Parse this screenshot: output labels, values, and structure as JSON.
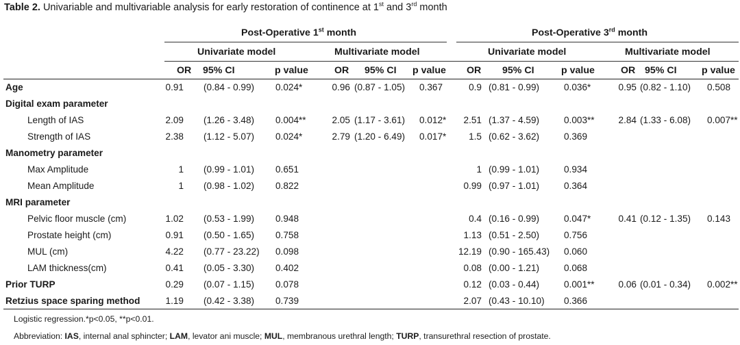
{
  "caption": {
    "label": "Table 2.",
    "text": "Univariable and multivariable analysis for early restoration of continence at 1",
    "sup1": "st",
    "mid": " and 3",
    "sup2": "rd",
    "end": " month"
  },
  "headers": {
    "period1": {
      "text": "Post-Operative 1",
      "sup": "st",
      "end": " month"
    },
    "period3": {
      "text": "Post-Operative 3",
      "sup": "rd",
      "end": " month"
    },
    "univariate": "Univariate model",
    "multivariate": "Multivariate model",
    "cols": {
      "or": "OR",
      "ci": "95% CI",
      "p": "p value"
    }
  },
  "rows": [
    {
      "label": "Age",
      "bold": true,
      "indent": false,
      "m1u": [
        "0.91",
        "(0.84 - 0.99)",
        "0.024*"
      ],
      "m1m": [
        "0.96",
        "(0.87 - 1.05)",
        "0.367"
      ],
      "m3u": [
        "0.9",
        "(0.81 - 0.99)",
        "0.036*"
      ],
      "m3m": [
        "0.95",
        "(0.82 - 1.10)",
        "0.508"
      ]
    },
    {
      "label": "Digital exam parameter",
      "bold": true,
      "indent": false,
      "m1u": [
        "",
        "",
        ""
      ],
      "m1m": [
        "",
        "",
        ""
      ],
      "m3u": [
        "",
        "",
        ""
      ],
      "m3m": [
        "",
        "",
        ""
      ]
    },
    {
      "label": "Length of IAS",
      "bold": false,
      "indent": true,
      "m1u": [
        "2.09",
        "(1.26 - 3.48)",
        "0.004**"
      ],
      "m1m": [
        "2.05",
        "(1.17 - 3.61)",
        "0.012*"
      ],
      "m3u": [
        "2.51",
        "(1.37 - 4.59)",
        "0.003**"
      ],
      "m3m": [
        "2.84",
        "(1.33 - 6.08)",
        "0.007**"
      ]
    },
    {
      "label": "Strength of IAS",
      "bold": false,
      "indent": true,
      "m1u": [
        "2.38",
        "(1.12 - 5.07)",
        "0.024*"
      ],
      "m1m": [
        "2.79",
        "(1.20 - 6.49)",
        "0.017*"
      ],
      "m3u": [
        "1.5",
        "(0.62 - 3.62)",
        "0.369"
      ],
      "m3m": [
        "",
        "",
        ""
      ]
    },
    {
      "label": "Manometry parameter",
      "bold": true,
      "indent": false,
      "m1u": [
        "",
        "",
        ""
      ],
      "m1m": [
        "",
        "",
        ""
      ],
      "m3u": [
        "",
        "",
        ""
      ],
      "m3m": [
        "",
        "",
        ""
      ]
    },
    {
      "label": "Max Amplitude",
      "bold": false,
      "indent": true,
      "m1u": [
        "1",
        "(0.99 - 1.01)",
        "0.651"
      ],
      "m1m": [
        "",
        "",
        ""
      ],
      "m3u": [
        "1",
        "(0.99 - 1.01)",
        "0.934"
      ],
      "m3m": [
        "",
        "",
        ""
      ]
    },
    {
      "label": "Mean Amplitude",
      "bold": false,
      "indent": true,
      "m1u": [
        "1",
        "(0.98 - 1.02)",
        "0.822"
      ],
      "m1m": [
        "",
        "",
        ""
      ],
      "m3u": [
        "0.99",
        "(0.97 - 1.01)",
        "0.364"
      ],
      "m3m": [
        "",
        "",
        ""
      ]
    },
    {
      "label": "MRI parameter",
      "bold": true,
      "indent": false,
      "m1u": [
        "",
        "",
        ""
      ],
      "m1m": [
        "",
        "",
        ""
      ],
      "m3u": [
        "",
        "",
        ""
      ],
      "m3m": [
        "",
        "",
        ""
      ]
    },
    {
      "label": "Pelvic floor muscle (cm)",
      "bold": false,
      "indent": true,
      "m1u": [
        "1.02",
        "(0.53 - 1.99)",
        "0.948"
      ],
      "m1m": [
        "",
        "",
        ""
      ],
      "m3u": [
        "0.4",
        "(0.16 - 0.99)",
        "0.047*"
      ],
      "m3m": [
        "0.41",
        "(0.12 - 1.35)",
        "0.143"
      ]
    },
    {
      "label": "Prostate height (cm)",
      "bold": false,
      "indent": true,
      "m1u": [
        "0.91",
        "(0.50 - 1.65)",
        "0.758"
      ],
      "m1m": [
        "",
        "",
        ""
      ],
      "m3u": [
        "1.13",
        "(0.51 - 2.50)",
        "0.756"
      ],
      "m3m": [
        "",
        "",
        ""
      ]
    },
    {
      "label": "MUL (cm)",
      "bold": false,
      "indent": true,
      "m1u": [
        "4.22",
        "(0.77 - 23.22)",
        "0.098"
      ],
      "m1m": [
        "",
        "",
        ""
      ],
      "m3u": [
        "12.19",
        "(0.90 - 165.43)",
        "0.060"
      ],
      "m3m": [
        "",
        "",
        ""
      ]
    },
    {
      "label": "LAM thickness(cm)",
      "bold": false,
      "indent": true,
      "m1u": [
        "0.41",
        "(0.05 - 3.30)",
        "0.402"
      ],
      "m1m": [
        "",
        "",
        ""
      ],
      "m3u": [
        "0.08",
        "(0.00 - 1.21)",
        "0.068"
      ],
      "m3m": [
        "",
        "",
        ""
      ]
    },
    {
      "label": "Prior TURP",
      "bold": true,
      "indent": false,
      "m1u": [
        "0.29",
        "(0.07 - 1.15)",
        "0.078"
      ],
      "m1m": [
        "",
        "",
        ""
      ],
      "m3u": [
        "0.12",
        "(0.03 - 0.44)",
        "0.001**"
      ],
      "m3m": [
        "0.06",
        "(0.01 - 0.34)",
        "0.002**"
      ]
    },
    {
      "label": "Retzius space sparing method",
      "bold": true,
      "indent": false,
      "m1u": [
        "1.19",
        "(0.42 - 3.38)",
        "0.739"
      ],
      "m1m": [
        "",
        "",
        ""
      ],
      "m3u": [
        "2.07",
        "(0.43 - 10.10)",
        "0.366"
      ],
      "m3m": [
        "",
        "",
        ""
      ]
    }
  ],
  "footnotes": {
    "logistic": "Logistic regression.*p<0.05, **p<0.01.",
    "abbr_prefix": "Abbreviation: ",
    "abbr": [
      {
        "term": "IAS",
        "def": ", internal anal sphincter; "
      },
      {
        "term": "LAM",
        "def": ", levator ani muscle; "
      },
      {
        "term": "MUL",
        "def": ", membranous urethral length; "
      },
      {
        "term": "TURP",
        "def": ", transurethral resection of prostate."
      }
    ]
  }
}
